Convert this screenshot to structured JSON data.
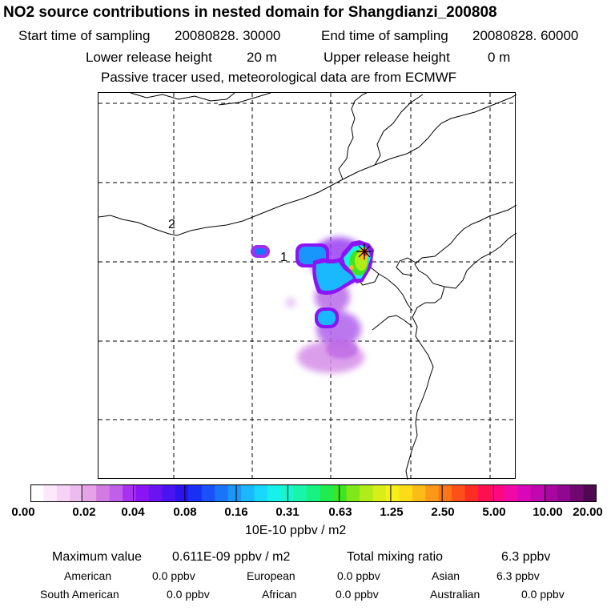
{
  "header": {
    "title": "NO2 source contributions in nested domain for Shangdianzi_200808",
    "start_label": "Start time of sampling",
    "start_value": "20080828. 30000",
    "end_label": "End time of sampling",
    "end_value": "20080828. 60000",
    "lower_label": "Lower release height",
    "lower_value": "20 m",
    "upper_label": "Upper release height",
    "upper_value": "0 m",
    "tracer_note": "Passive tracer used, meteorological data are from ECMWF"
  },
  "map": {
    "labels": [
      "2",
      "1"
    ],
    "source_marker": "station-marker"
  },
  "colorbar": {
    "ticks": [
      "0.00",
      "0.02",
      "0.04",
      "0.08",
      "0.16",
      "0.31",
      "0.63",
      "1.25",
      "2.50",
      "5.00",
      "10.00",
      "20.00"
    ],
    "units": "10E-10 ppbv / m2",
    "colors": [
      "#ffffff",
      "#fbe8fb",
      "#f5d3f5",
      "#eebbee",
      "#e6a2e6",
      "#d27ae2",
      "#c060e8",
      "#a832f0",
      "#8a14f4",
      "#6a14f2",
      "#4a14f0",
      "#2a14ee",
      "#1830f4",
      "#1852f8",
      "#1a74fa",
      "#1a96fc",
      "#1ab8fc",
      "#1ad8fc",
      "#18f0ec",
      "#18f4cc",
      "#18f4a8",
      "#18f280",
      "#20ec50",
      "#40e420",
      "#80e818",
      "#b0ec18",
      "#d8ee18",
      "#f4f018",
      "#fcdc18",
      "#fcbc18",
      "#fc9818",
      "#fc7418",
      "#fc5018",
      "#fc2c20",
      "#fc1050",
      "#fc0880",
      "#f008a8",
      "#d808b8",
      "#c008b0",
      "#a808a0",
      "#900890",
      "#700870",
      "#500850"
    ]
  },
  "footer": {
    "max_label": "Maximum value",
    "max_value": "0.611E-09 ppbv / m2",
    "total_label": "Total mixing ratio",
    "total_value": "6.3 ppbv",
    "regions": [
      {
        "name": "American",
        "value": "0.0 ppbv"
      },
      {
        "name": "European",
        "value": "0.0 ppbv"
      },
      {
        "name": "Asian",
        "value": "6.3 ppbv"
      },
      {
        "name": "South American",
        "value": "0.0 ppbv"
      },
      {
        "name": "African",
        "value": "0.0 ppbv"
      },
      {
        "name": "Australian",
        "value": "0.0 ppbv"
      }
    ]
  }
}
